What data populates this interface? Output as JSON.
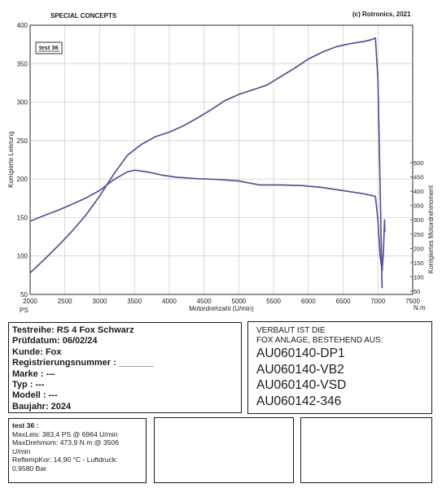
{
  "header": {
    "left": "SPECIAL CONCEPTS",
    "right": "(c) Rotronics, 2021"
  },
  "chart_data": {
    "type": "line",
    "legend": "test 36",
    "xlabel": "Motordrehzahl (U/min)",
    "ylabel_left": "Korrigierte Leistung",
    "ylabel_right": "Korrigiertes Motordrehmoment",
    "unit_left": "PS",
    "unit_right": "N.m",
    "xlim": [
      2000,
      7500
    ],
    "ylim_left": [
      50,
      400
    ],
    "ylim_right": [
      50,
      500
    ],
    "x_ticks": [
      "2000",
      "2500",
      "3000",
      "3500",
      "4000",
      "4500",
      "5000",
      "5500",
      "6000",
      "6500",
      "7000",
      "7500"
    ],
    "y_left_ticks": [
      "400",
      "350",
      "300",
      "250",
      "200",
      "150",
      "100",
      "50"
    ],
    "y_right_ticks": [
      "500",
      "450",
      "400",
      "350",
      "300",
      "250",
      "200",
      "150",
      "100",
      "50"
    ],
    "series": [
      {
        "name": "Korrigierte Leistung",
        "axis": "left",
        "color": "#5a4f94",
        "x": [
          2000,
          2200,
          2400,
          2600,
          2800,
          3000,
          3200,
          3400,
          3600,
          3800,
          4000,
          4200,
          4400,
          4600,
          4800,
          5000,
          5200,
          5400,
          5600,
          5800,
          6000,
          6200,
          6400,
          6600,
          6800,
          6900,
          6964,
          7000,
          7030,
          7060
        ],
        "values": [
          78,
          95,
          113,
          132,
          153,
          178,
          206,
          231,
          245,
          255,
          261,
          269,
          279,
          290,
          302,
          310,
          316,
          322,
          333,
          344,
          356,
          365,
          372,
          376,
          379,
          381,
          383.4,
          330,
          200,
          58
        ]
      },
      {
        "name": "Korrigiertes Motordrehmoment",
        "axis": "right",
        "color": "#5a4f94",
        "x": [
          2000,
          2200,
          2400,
          2600,
          2800,
          3000,
          3200,
          3400,
          3506,
          3700,
          3900,
          4100,
          4400,
          4700,
          5000,
          5300,
          5600,
          5900,
          6200,
          6500,
          6800,
          6964,
          7000,
          7030,
          7060,
          7080,
          7095,
          7100
        ],
        "values": [
          295,
          315,
          333,
          354,
          376,
          403,
          440,
          468,
          473.9,
          467,
          456,
          449,
          444,
          441,
          436,
          422,
          422,
          420,
          413,
          402,
          391,
          382,
          300,
          180,
          120,
          190,
          300,
          258
        ]
      }
    ],
    "grid": true
  },
  "test_info": {
    "lines": [
      "Testreihe: RS 4 Fox Schwarz",
      "Prüfdatum: 06/02/24",
      "Kunde: Fox",
      "Registrierungsnummer  :  _______",
      "Marke  : ---",
      "Typ  : ---",
      "Modell  : ---",
      "Baujahr: 2024"
    ]
  },
  "fitment": {
    "line1": "VERBAUT IST DIE",
    "line2": "FOX ANLAGE, BESTEHEND AUS:",
    "parts": [
      "AU060140-DP1",
      "AU060140-VB2",
      "AU060140-VSD",
      "AU060142-346"
    ]
  },
  "results": {
    "title": "test 36 :",
    "lines": [
      "MaxLeis: 383,4 PS @ 6964 U/min",
      "MaxDrehmom: 473,9 N.m @ 3506",
      "U/min",
      "ReftempKor: 14,90 °C - Luftdruck:",
      "0,9580 Bar"
    ]
  }
}
